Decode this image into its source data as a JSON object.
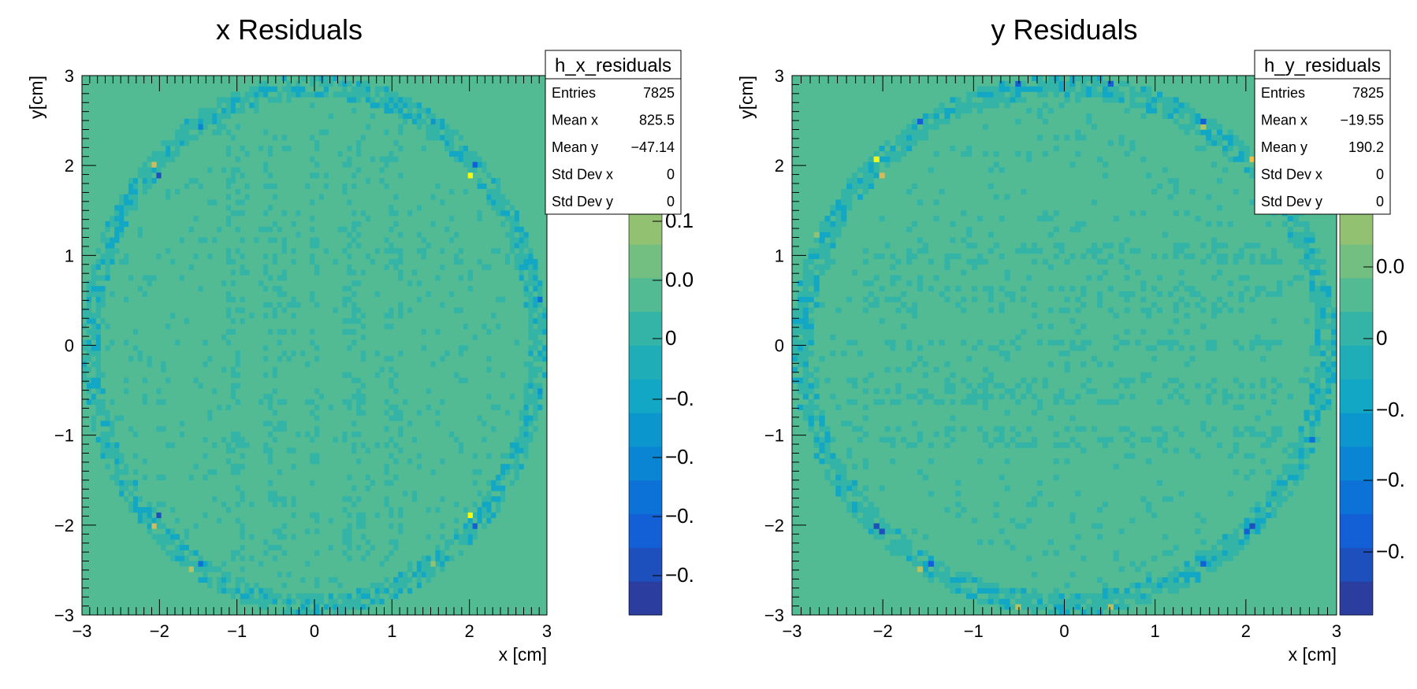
{
  "chart_data": [
    {
      "type": "heatmap",
      "title": "x Residuals",
      "xlabel": "x [cm]",
      "ylabel": "y[cm]",
      "xlim": [
        -3,
        3
      ],
      "ylim": [
        -3,
        3
      ],
      "x_ticks": [
        "−3",
        "−2",
        "−1",
        "0",
        "1",
        "2",
        "3"
      ],
      "y_ticks": [
        "−3",
        "−2",
        "−1",
        "0",
        "1",
        "2",
        "3"
      ],
      "palette_labels": [
        "0.1",
        "0.0",
        "0",
        "−0.",
        "−0.",
        "−0.",
        "−0."
      ],
      "palette_labels_partial": [
        "2",
        "1"
      ],
      "background_value": 0,
      "ring_radius_cm": 3.0,
      "stats": {
        "name": "h_x_residuals",
        "rows": [
          {
            "label": "Entries",
            "value": "7825"
          },
          {
            "label": "Mean x",
            "value": "825.5"
          },
          {
            "label": "Mean y",
            "value": "−47.14"
          },
          {
            "label": "Std Dev x",
            "value": "0"
          },
          {
            "label": "Std Dev y",
            "value": "0"
          }
        ]
      },
      "hot_cells": [
        {
          "x": -2.05,
          "y": 2.0,
          "level": 0.85
        },
        {
          "x": -2.0,
          "y": 1.9,
          "level": 0.05
        },
        {
          "x": 2.0,
          "y": 1.9,
          "level": 1.0
        },
        {
          "x": 2.05,
          "y": 2.0,
          "level": 0.1
        },
        {
          "x": -2.0,
          "y": -1.9,
          "level": 0.05
        },
        {
          "x": -2.05,
          "y": -2.0,
          "level": 0.85
        },
        {
          "x": 2.0,
          "y": -1.9,
          "level": 1.0
        },
        {
          "x": 2.05,
          "y": -2.0,
          "level": 0.15
        },
        {
          "x": -1.5,
          "y": -2.45,
          "level": 0.2
        },
        {
          "x": -1.6,
          "y": -2.5,
          "level": 0.8
        },
        {
          "x": -1.5,
          "y": 2.45,
          "level": 0.25
        },
        {
          "x": 1.5,
          "y": 2.5,
          "level": 0.3
        },
        {
          "x": 1.5,
          "y": -2.45,
          "level": 0.75
        },
        {
          "x": 2.9,
          "y": 0.5,
          "level": 0.2
        },
        {
          "x": 2.9,
          "y": -0.5,
          "level": 0.3
        }
      ]
    },
    {
      "type": "heatmap",
      "title": "y Residuals",
      "xlabel": "x [cm]",
      "ylabel": "y[cm]",
      "xlim": [
        -3,
        3
      ],
      "ylim": [
        -3,
        3
      ],
      "x_ticks": [
        "−3",
        "−2",
        "−1",
        "0",
        "1",
        "2",
        "3"
      ],
      "y_ticks": [
        "−3",
        "−2",
        "−1",
        "0",
        "1",
        "2",
        "3"
      ],
      "palette_labels": [
        "0.0",
        "0",
        "−0.",
        "−0.",
        "−0."
      ],
      "palette_labels_partial": [
        "1"
      ],
      "background_value": 0,
      "ring_radius_cm": 3.0,
      "stats": {
        "name": "h_y_residuals",
        "rows": [
          {
            "label": "Entries",
            "value": "7825"
          },
          {
            "label": "Mean x",
            "value": "−19.55"
          },
          {
            "label": "Mean y",
            "value": "190.2"
          },
          {
            "label": "Std Dev x",
            "value": "0"
          },
          {
            "label": "Std Dev y",
            "value": "0"
          }
        ]
      },
      "hot_cells": [
        {
          "x": -2.05,
          "y": 2.05,
          "level": 1.0
        },
        {
          "x": -2.0,
          "y": 1.9,
          "level": 0.85
        },
        {
          "x": 2.05,
          "y": 2.05,
          "level": 0.95
        },
        {
          "x": -2.1,
          "y": -2.0,
          "level": 0.05
        },
        {
          "x": -2.0,
          "y": -2.1,
          "level": 0.05
        },
        {
          "x": 2.05,
          "y": -2.0,
          "level": 0.05
        },
        {
          "x": 2.0,
          "y": -2.1,
          "level": 0.1
        },
        {
          "x": -1.5,
          "y": -2.45,
          "level": 0.1
        },
        {
          "x": -1.6,
          "y": -2.5,
          "level": 0.8
        },
        {
          "x": 1.5,
          "y": -2.45,
          "level": 0.15
        },
        {
          "x": 1.5,
          "y": 2.45,
          "level": 0.8
        },
        {
          "x": 1.5,
          "y": 2.5,
          "level": 0.1
        },
        {
          "x": -1.6,
          "y": 2.5,
          "level": 0.1
        },
        {
          "x": -0.5,
          "y": -2.9,
          "level": 0.8
        },
        {
          "x": 0.5,
          "y": -2.9,
          "level": 0.8
        },
        {
          "x": -0.5,
          "y": 2.9,
          "level": 0.15
        },
        {
          "x": 0.5,
          "y": 2.9,
          "level": 0.15
        },
        {
          "x": 2.7,
          "y": -1.05,
          "level": 0.2
        },
        {
          "x": -2.7,
          "y": 1.2,
          "level": 0.75
        }
      ]
    }
  ]
}
